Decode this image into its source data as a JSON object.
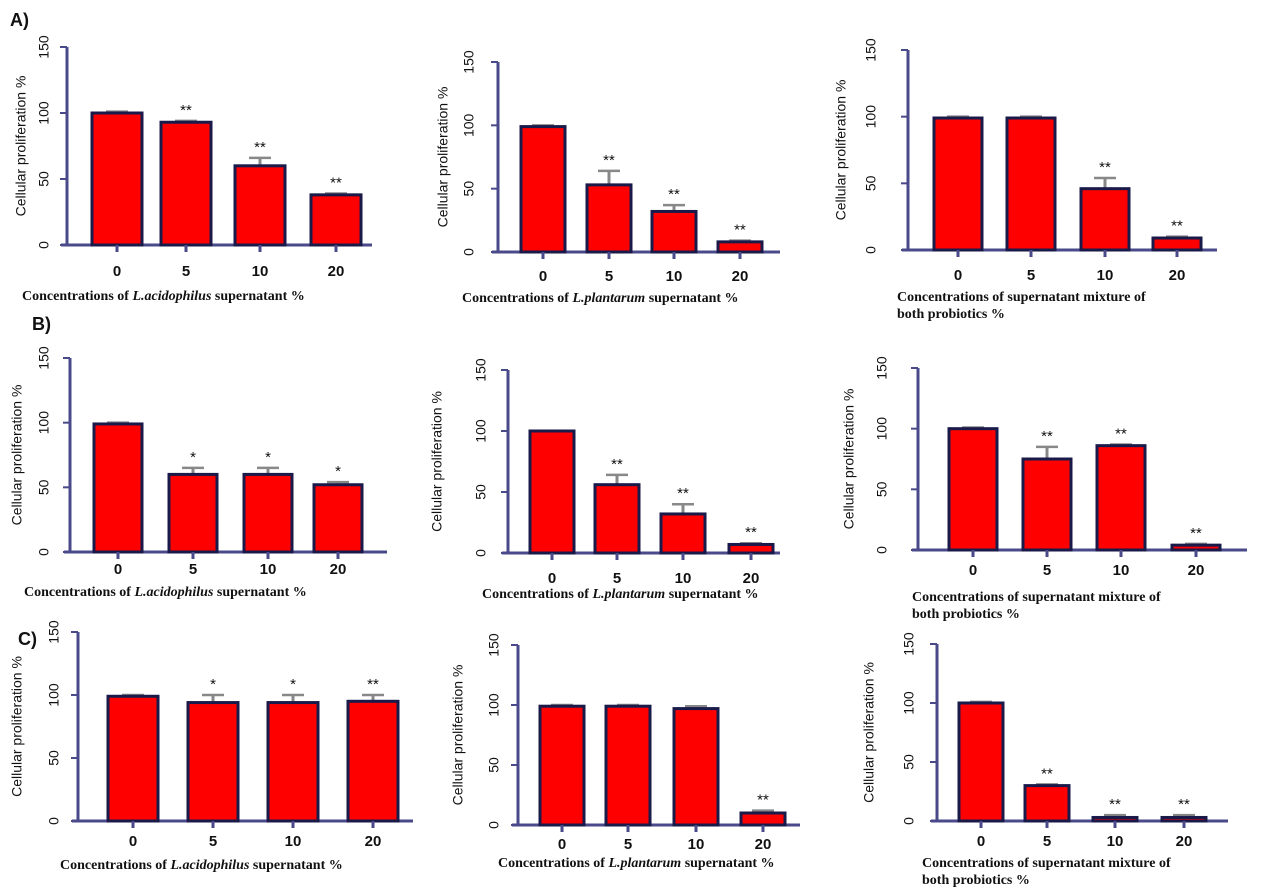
{
  "colors": {
    "bar_fill": "#ff0000",
    "axis": "#4a4a8a",
    "bar_edge": "#1a1a4a",
    "error_bar": "#888888"
  },
  "chart_data": [
    {
      "type": "bar",
      "group": "A",
      "group_label": "A)",
      "categories": [
        "0",
        "5",
        "10",
        "20"
      ],
      "values": [
        100,
        93,
        60,
        38
      ],
      "errors": [
        1,
        1,
        6,
        1
      ],
      "significance": [
        "",
        "**",
        "**",
        "**"
      ],
      "ylabel": "Cellular proliferation %",
      "xlabel_parts": [
        {
          "t": "Concentrations of ",
          "i": false
        },
        {
          "t": "L.acidophilus",
          "i": true
        },
        {
          "t": " supernatant %",
          "i": false
        }
      ],
      "xlabel_line2": "",
      "yticks": [
        "0",
        "50",
        "100",
        "150"
      ],
      "ylim": [
        0,
        150
      ]
    },
    {
      "type": "bar",
      "group": "A",
      "group_label": "",
      "categories": [
        "0",
        "5",
        "10",
        "20"
      ],
      "values": [
        99,
        53,
        32,
        8
      ],
      "errors": [
        1,
        11,
        5,
        1
      ],
      "significance": [
        "",
        "**",
        "**",
        "**"
      ],
      "ylabel": "Cellular proliferation %",
      "xlabel_parts": [
        {
          "t": "Concentrations of ",
          "i": false
        },
        {
          "t": "L.plantarum",
          "i": true
        },
        {
          "t": " supernatant %",
          "i": false
        }
      ],
      "xlabel_line2": "",
      "yticks": [
        "0",
        "50",
        "100",
        "150"
      ],
      "ylim": [
        0,
        150
      ]
    },
    {
      "type": "bar",
      "group": "A",
      "group_label": "",
      "categories": [
        "0",
        "5",
        "10",
        "20"
      ],
      "values": [
        99,
        99,
        46,
        9
      ],
      "errors": [
        1,
        1,
        8,
        1
      ],
      "significance": [
        "",
        "",
        "**",
        "**"
      ],
      "ylabel": "Cellular proliferation %",
      "xlabel_parts": [
        {
          "t": "Concentrations of supernatant mixture of",
          "i": false
        }
      ],
      "xlabel_line2": "both probiotics %",
      "yticks": [
        "0",
        "50",
        "100",
        "150"
      ],
      "ylim": [
        0,
        150
      ]
    },
    {
      "type": "bar",
      "group": "B",
      "group_label": "B)",
      "categories": [
        "0",
        "5",
        "10",
        "20"
      ],
      "values": [
        99,
        60,
        60,
        52
      ],
      "errors": [
        1,
        5,
        5,
        2
      ],
      "significance": [
        "",
        "*",
        "*",
        "*"
      ],
      "ylabel": "Cellular proliferation %",
      "xlabel_parts": [
        {
          "t": "Concentrations of ",
          "i": false
        },
        {
          "t": "L.acidophilus",
          "i": true
        },
        {
          "t": " supernatant %",
          "i": false
        }
      ],
      "xlabel_line2": "",
      "yticks": [
        "0",
        "50",
        "100",
        "150"
      ],
      "ylim": [
        0,
        150
      ]
    },
    {
      "type": "bar",
      "group": "B",
      "group_label": "",
      "categories": [
        "0",
        "5",
        "10",
        "20"
      ],
      "values": [
        100,
        56,
        32,
        7
      ],
      "errors": [
        0,
        8,
        8,
        1
      ],
      "significance": [
        "",
        "**",
        "**",
        "**"
      ],
      "ylabel": "Cellular proliferation %",
      "xlabel_parts": [
        {
          "t": "Concentrations of ",
          "i": false
        },
        {
          "t": "L.plantarum",
          "i": true
        },
        {
          "t": " supernatant %",
          "i": false
        }
      ],
      "xlabel_line2": "",
      "yticks": [
        "0",
        "50",
        "100",
        "150"
      ],
      "ylim": [
        0,
        150
      ]
    },
    {
      "type": "bar",
      "group": "B",
      "group_label": "",
      "categories": [
        "0",
        "5",
        "10",
        "20"
      ],
      "values": [
        100,
        75,
        86,
        4
      ],
      "errors": [
        1,
        10,
        1,
        1
      ],
      "significance": [
        "",
        "**",
        "**",
        "**"
      ],
      "ylabel": "Cellular proliferation %",
      "xlabel_parts": [
        {
          "t": "Concentrations of supernatant mixture of",
          "i": false
        }
      ],
      "xlabel_line2": "both probiotics %",
      "yticks": [
        "0",
        "50",
        "100",
        "150"
      ],
      "ylim": [
        0,
        150
      ]
    },
    {
      "type": "bar",
      "group": "C",
      "group_label": "C)",
      "categories": [
        "0",
        "5",
        "10",
        "20"
      ],
      "values": [
        99,
        94,
        94,
        95
      ],
      "errors": [
        1,
        6,
        6,
        5
      ],
      "significance": [
        "",
        "*",
        "*",
        "**"
      ],
      "ylabel": "Cellular proliferation %",
      "xlabel_parts": [
        {
          "t": "Concentrations of ",
          "i": false
        },
        {
          "t": "L.acidophilus",
          "i": true
        },
        {
          "t": " supernatant %",
          "i": false
        }
      ],
      "xlabel_line2": "",
      "yticks": [
        "0",
        "50",
        "100",
        "150"
      ],
      "ylim": [
        0,
        150
      ]
    },
    {
      "type": "bar",
      "group": "C",
      "group_label": "",
      "categories": [
        "0",
        "5",
        "10",
        "20"
      ],
      "values": [
        99,
        99,
        97,
        10
      ],
      "errors": [
        1,
        1,
        2,
        2
      ],
      "significance": [
        "",
        "",
        "",
        "**"
      ],
      "ylabel": "Cellular proliferation %",
      "xlabel_parts": [
        {
          "t": "Concentrations of ",
          "i": false
        },
        {
          "t": "L.plantarum",
          "i": true
        },
        {
          "t": " supernatant %",
          "i": false
        }
      ],
      "xlabel_line2": "",
      "yticks": [
        "0",
        "50",
        "100",
        "150"
      ],
      "ylim": [
        0,
        150
      ]
    },
    {
      "type": "bar",
      "group": "C",
      "group_label": "",
      "categories": [
        "0",
        "5",
        "10",
        "20"
      ],
      "values": [
        100,
        30,
        3,
        3
      ],
      "errors": [
        1,
        1,
        2,
        2
      ],
      "significance": [
        "",
        "**",
        "**",
        "**"
      ],
      "ylabel": "Cellular proliferation %",
      "xlabel_parts": [
        {
          "t": "Concentrations of supernatant mixture of",
          "i": false
        }
      ],
      "xlabel_line2": "both probiotics %",
      "yticks": [
        "0",
        "50",
        "100",
        "150"
      ],
      "ylim": [
        0,
        150
      ]
    }
  ]
}
